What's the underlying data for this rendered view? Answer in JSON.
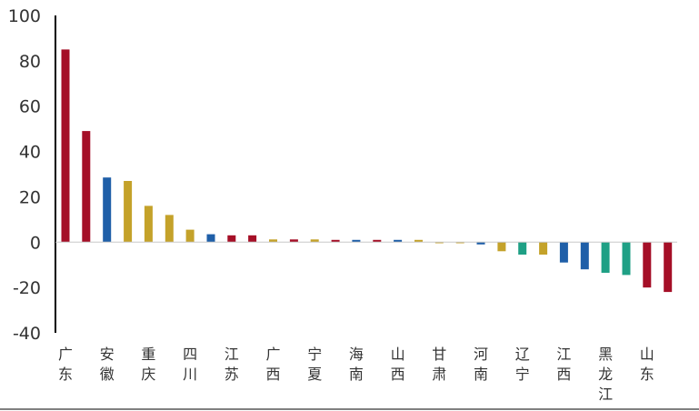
{
  "chart_data": {
    "type": "bar",
    "categories": [
      "广东",
      "",
      "安徽",
      "",
      "重庆",
      "",
      "四川",
      "",
      "江苏",
      "",
      "广西",
      "",
      "宁夏",
      "",
      "海南",
      "",
      "山西",
      "",
      "甘肃",
      "",
      "河南",
      "",
      "辽宁",
      "",
      "江西",
      "",
      "黑龙江",
      "",
      "山东",
      ""
    ],
    "values": [
      85,
      49,
      28.5,
      27,
      16,
      12,
      5.5,
      3.5,
      3,
      3,
      1.2,
      1.2,
      1.2,
      1,
      1,
      1,
      1,
      1,
      -0.5,
      -0.5,
      -1,
      -4,
      -5.5,
      -5.5,
      -9,
      -12,
      -13.5,
      -14.5,
      -20,
      -22
    ],
    "colors": [
      "#a50f27",
      "#a50f27",
      "#1f5fa8",
      "#c4a22a",
      "#c4a22a",
      "#c4a22a",
      "#c4a22a",
      "#1f5fa8",
      "#a50f27",
      "#a50f27",
      "#c4a22a",
      "#a50f27",
      "#c4a22a",
      "#a50f27",
      "#1f5fa8",
      "#a50f27",
      "#1f5fa8",
      "#c4a22a",
      "#c4a22a",
      "#c4a22a",
      "#1f5fa8",
      "#c4a22a",
      "#1fa085",
      "#c4a22a",
      "#1f5fa8",
      "#1f5fa8",
      "#1fa085",
      "#1fa085",
      "#a50f27",
      "#a50f27"
    ],
    "ylim": [
      -40,
      100
    ],
    "yticks": [
      "100",
      "80",
      "60",
      "40",
      "20",
      "0",
      "-20",
      "-40"
    ],
    "grid": false
  }
}
